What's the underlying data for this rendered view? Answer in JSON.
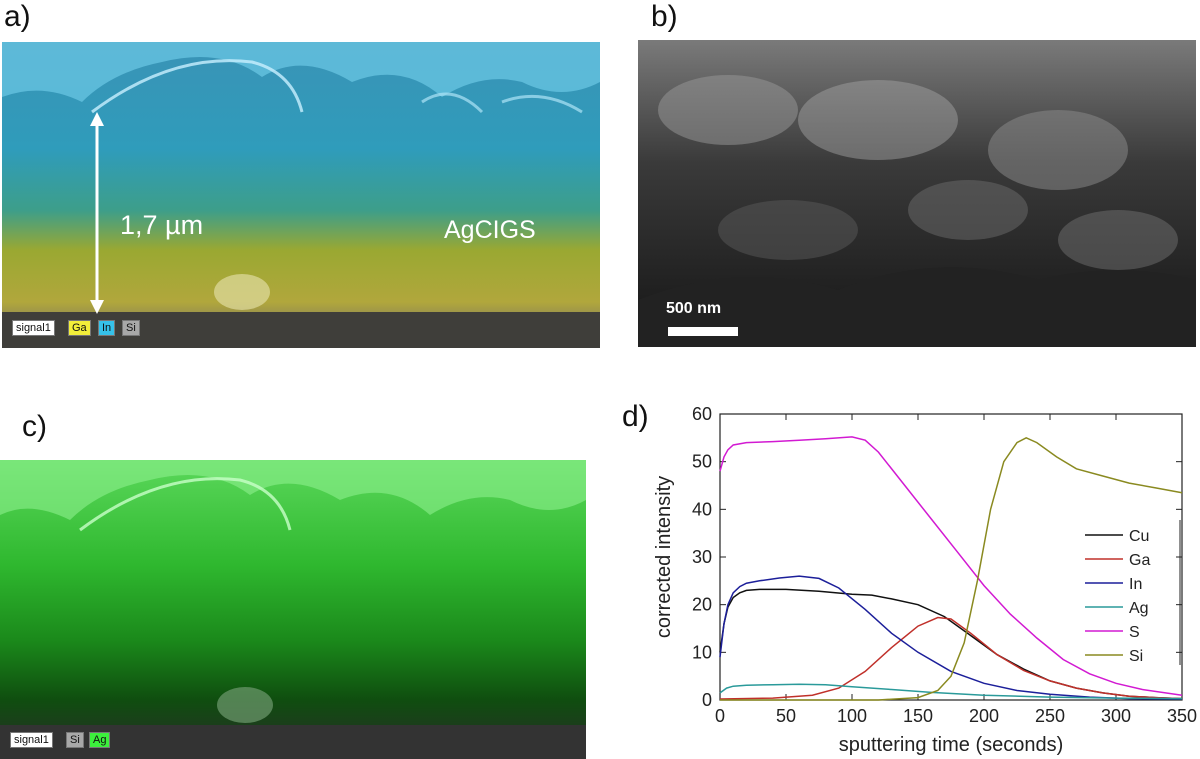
{
  "panels": {
    "a": {
      "label": "a)",
      "thickness_label": "1,7 µm",
      "material_label": "AgCIGS",
      "legend": [
        "signal1",
        "Ga",
        "In",
        "Si"
      ],
      "colors": {
        "Ga": "#f2ee3a",
        "In": "#36c2ea",
        "Si": "#a8a8a8",
        "signal1": "#ffffff"
      }
    },
    "b": {
      "label": "b)",
      "scale_bar": "500 nm"
    },
    "c": {
      "label": "c)",
      "legend": [
        "signal1",
        "Si",
        "Ag"
      ],
      "colors": {
        "Si": "#a8a8a8",
        "Ag": "#3cf03c",
        "signal1": "#ffffff"
      }
    },
    "d": {
      "label": "d)"
    }
  },
  "chart_data": {
    "type": "line",
    "title": "",
    "xlabel": "sputtering time (seconds)",
    "ylabel": "corrected intensity",
    "xlim": [
      0,
      350
    ],
    "ylim": [
      0,
      60
    ],
    "xticks": [
      0,
      50,
      100,
      150,
      200,
      250,
      300,
      350
    ],
    "yticks": [
      0,
      10,
      20,
      30,
      40,
      50,
      60
    ],
    "legend_position": "right",
    "series": [
      {
        "name": "Cu",
        "color": "#111111",
        "x": [
          0,
          3,
          6,
          10,
          15,
          20,
          30,
          50,
          75,
          100,
          115,
          130,
          150,
          170,
          190,
          210,
          230,
          250,
          270,
          290,
          310,
          330,
          350
        ],
        "y": [
          10,
          16,
          19.5,
          21.5,
          22.5,
          23,
          23.2,
          23.2,
          22.8,
          22.2,
          22,
          21.2,
          20,
          17.5,
          13.5,
          9.5,
          6.5,
          4,
          2.5,
          1.5,
          0.8,
          0.5,
          0.3
        ]
      },
      {
        "name": "Ga",
        "color": "#c0302a",
        "x": [
          0,
          40,
          70,
          90,
          110,
          130,
          150,
          165,
          175,
          190,
          210,
          230,
          250,
          270,
          290,
          310,
          330,
          350
        ],
        "y": [
          0.2,
          0.4,
          1,
          2.5,
          6,
          11,
          15.5,
          17.3,
          17,
          14,
          9.5,
          6.2,
          4,
          2.5,
          1.5,
          0.8,
          0.5,
          0.3
        ]
      },
      {
        "name": "In",
        "color": "#1c1f9a",
        "x": [
          0,
          3,
          6,
          10,
          15,
          20,
          30,
          45,
          60,
          75,
          90,
          110,
          130,
          150,
          175,
          200,
          225,
          250,
          280,
          310,
          350
        ],
        "y": [
          9,
          16,
          20,
          22.5,
          23.8,
          24.5,
          25,
          25.6,
          26,
          25.5,
          23.5,
          19,
          14,
          10,
          6,
          3.5,
          2,
          1.2,
          0.6,
          0.3,
          0.2
        ]
      },
      {
        "name": "Ag",
        "color": "#2a9a9a",
        "x": [
          0,
          5,
          10,
          20,
          40,
          60,
          80,
          100,
          130,
          160,
          200,
          250,
          300,
          350
        ],
        "y": [
          1.5,
          2.5,
          2.9,
          3.1,
          3.2,
          3.3,
          3.2,
          2.8,
          2.2,
          1.6,
          1.0,
          0.6,
          0.4,
          0.3
        ]
      },
      {
        "name": "S",
        "color": "#d21ad2",
        "x": [
          0,
          3,
          6,
          10,
          20,
          40,
          60,
          80,
          100,
          110,
          120,
          140,
          160,
          180,
          200,
          220,
          240,
          260,
          280,
          300,
          320,
          350
        ],
        "y": [
          48,
          51,
          52.5,
          53.5,
          54,
          54.2,
          54.5,
          54.8,
          55.2,
          54.5,
          52,
          45,
          38,
          31,
          24,
          18,
          13,
          8.5,
          5.5,
          3.5,
          2.2,
          1
        ]
      },
      {
        "name": "Si",
        "color": "#8a8a20",
        "x": [
          0,
          120,
          150,
          165,
          175,
          185,
          195,
          205,
          215,
          225,
          232,
          240,
          255,
          270,
          290,
          310,
          330,
          350
        ],
        "y": [
          0,
          0,
          0.5,
          2,
          5,
          12,
          25,
          40,
          50,
          54,
          55,
          54,
          51,
          48.5,
          47,
          45.5,
          44.5,
          43.5
        ]
      }
    ]
  }
}
